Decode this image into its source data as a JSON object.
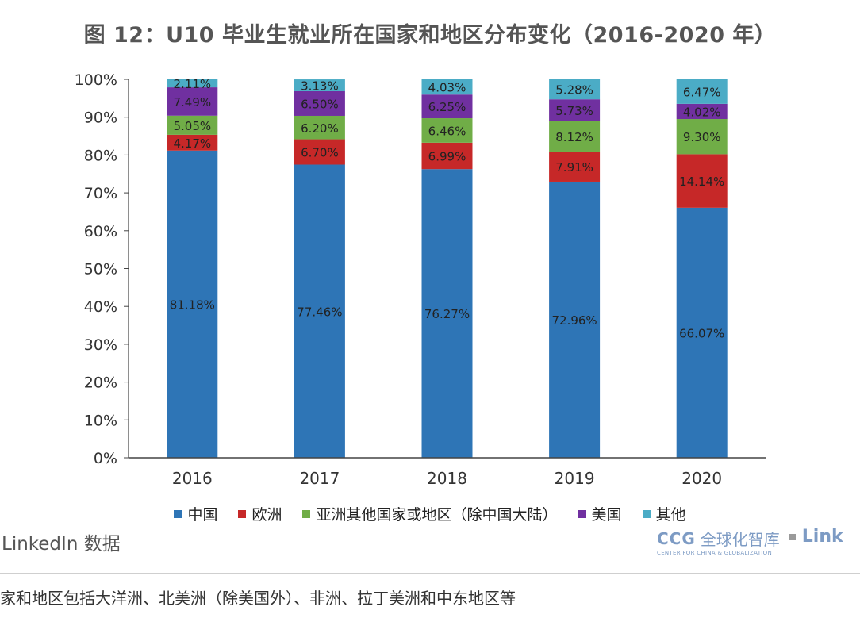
{
  "title": "图 12：U10 毕业生就业所在国家和地区分布变化（2016-2020 年）",
  "chart_data": {
    "type": "bar",
    "stacked": true,
    "categories": [
      "2016",
      "2017",
      "2018",
      "2019",
      "2020"
    ],
    "ylim": [
      0,
      100
    ],
    "yticks": [
      "0%",
      "10%",
      "20%",
      "30%",
      "40%",
      "50%",
      "60%",
      "70%",
      "80%",
      "90%",
      "100%"
    ],
    "series": [
      {
        "name": "中国",
        "color": "#2e75b6",
        "values": [
          81.18,
          77.46,
          76.27,
          72.96,
          66.07
        ],
        "labels": [
          "81.18%",
          "77.46%",
          "76.27%",
          "72.96%",
          "66.07%"
        ]
      },
      {
        "name": "欧洲",
        "color": "#c62828",
        "values": [
          4.17,
          6.7,
          6.99,
          7.91,
          14.14
        ],
        "labels": [
          "4.17%",
          "6.70%",
          "6.99%",
          "7.91%",
          "14.14%"
        ]
      },
      {
        "name": "亚洲其他国家或地区（除中国大陆）",
        "color": "#70ad47",
        "values": [
          5.05,
          6.2,
          6.46,
          8.12,
          9.3
        ],
        "labels": [
          "5.05%",
          "6.20%",
          "6.46%",
          "8.12%",
          "9.30%"
        ]
      },
      {
        "name": "美国",
        "color": "#7030a0",
        "values": [
          7.49,
          6.5,
          6.25,
          5.73,
          4.02
        ],
        "labels": [
          "7.49%",
          "6.50%",
          "6.25%",
          "5.73%",
          "4.02%"
        ]
      },
      {
        "name": "其他",
        "color": "#4bacc6",
        "values": [
          2.11,
          3.13,
          4.03,
          5.28,
          6.47
        ],
        "labels": [
          "2.11%",
          "3.13%",
          "4.03%",
          "5.28%",
          "6.47%"
        ]
      }
    ],
    "grid": false,
    "legend_position": "bottom"
  },
  "source": "LinkedIn 数据",
  "logo": {
    "ccg": "CCG",
    "cn_name": "全球化智库",
    "en_name": "CENTER FOR CHINA & GLOBALIZATION",
    "partner": "Link"
  },
  "footnote": "家和地区包括大洋洲、北美洲（除美国外）、非洲、拉丁美洲和中东地区等"
}
